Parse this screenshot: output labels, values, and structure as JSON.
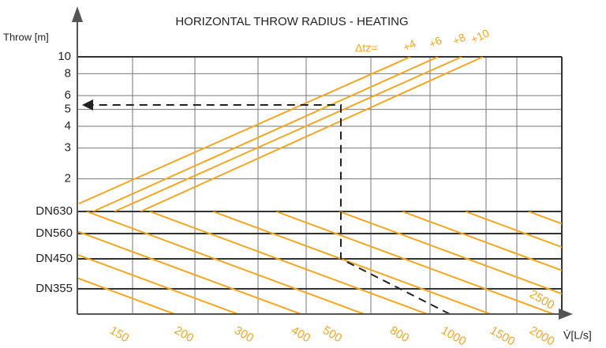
{
  "chart_data": {
    "type": "nomogram",
    "title": "HORIZONTAL THROW RADIUS - HEATING",
    "y_label": "Throw [m]",
    "x_label": "V̇[L/s]",
    "ylim": [
      1.3,
      10
    ],
    "yticks": [
      10,
      8,
      6,
      5,
      4,
      3,
      2
    ],
    "log_y": true,
    "dn_labels": [
      "DN630",
      "DN560",
      "DN450",
      "DN355"
    ],
    "xticks": [
      150,
      200,
      300,
      400,
      500,
      800,
      1000,
      1500,
      2000,
      2500
    ],
    "delta_prefix": "Δtz=",
    "delta_labels": [
      "+4",
      "+6",
      "+8",
      "+10"
    ],
    "line_color": "#f5a623"
  }
}
